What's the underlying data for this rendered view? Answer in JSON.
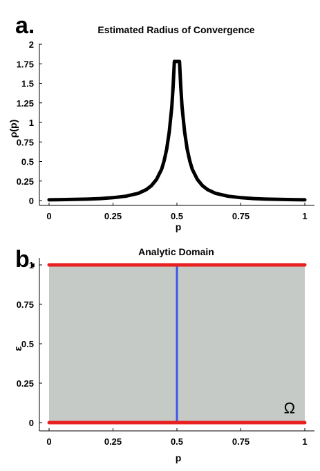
{
  "chart_data": [
    {
      "type": "line",
      "panel_label": "a.",
      "title": "Estimated Radius of Convergence",
      "xlabel": "p",
      "ylabel": "ρ(p)",
      "xlim": [
        0,
        1
      ],
      "ylim": [
        0,
        2
      ],
      "x_ticks": [
        0,
        0.25,
        0.5,
        0.75,
        1
      ],
      "x_tick_labels": [
        "0",
        "0.25",
        "0.5",
        "0.75",
        "1"
      ],
      "y_ticks": [
        0,
        0.25,
        0.5,
        0.75,
        1,
        1.25,
        1.5,
        1.75,
        2
      ],
      "y_tick_labels": [
        "0",
        "0.25",
        "0.5",
        "0.75",
        "1",
        "1.25",
        "1.5",
        "1.75",
        "2"
      ],
      "grid": false,
      "line_color": "#000000",
      "series": [
        {
          "x": [
            0.0,
            0.05,
            0.1,
            0.15,
            0.2,
            0.25,
            0.3,
            0.35,
            0.38,
            0.4,
            0.42,
            0.44,
            0.45,
            0.46,
            0.47,
            0.48,
            0.485,
            0.49,
            0.495,
            0.5,
            0.505,
            0.51,
            0.515,
            0.52,
            0.53,
            0.54,
            0.55,
            0.56,
            0.58,
            0.6,
            0.62,
            0.65,
            0.7,
            0.75,
            0.8,
            0.85,
            0.9,
            0.95,
            1.0
          ],
          "values": [
            0.01,
            0.012,
            0.015,
            0.019,
            0.026,
            0.037,
            0.056,
            0.094,
            0.14,
            0.19,
            0.27,
            0.4,
            0.51,
            0.66,
            0.88,
            1.2,
            1.45,
            1.8,
            2.0,
            2.0,
            2.0,
            1.8,
            1.45,
            1.2,
            0.88,
            0.66,
            0.51,
            0.4,
            0.27,
            0.19,
            0.14,
            0.094,
            0.056,
            0.037,
            0.026,
            0.019,
            0.015,
            0.012,
            0.01
          ]
        }
      ]
    },
    {
      "type": "area",
      "panel_label": "b.",
      "title": "Analytic Domain",
      "xlabel": "p",
      "ylabel": "ε",
      "xlim": [
        0,
        1
      ],
      "ylim": [
        -0.05,
        1.05
      ],
      "x_ticks": [
        0,
        0.25,
        0.5,
        0.75,
        1
      ],
      "x_tick_labels": [
        "0",
        "0.25",
        "0.5",
        "0.75",
        "1"
      ],
      "y_ticks": [
        0,
        0.25,
        0.5,
        0.75,
        1
      ],
      "y_tick_labels": [
        "0",
        "0.25",
        "0.5",
        "0.75",
        "1"
      ],
      "grid": false,
      "region": {
        "x": [
          0,
          1
        ],
        "y": [
          0,
          1
        ],
        "label": "Ω",
        "fill_color": "#c6cac7"
      },
      "boundary_lines": [
        {
          "y": 0,
          "x": [
            0,
            1
          ],
          "color": "#e8201f"
        },
        {
          "y": 1,
          "x": [
            0,
            1
          ],
          "color": "#e8201f"
        }
      ],
      "vertical_line": {
        "x": 0.5,
        "y": [
          0,
          1
        ],
        "color": "#3a57e6"
      }
    }
  ]
}
